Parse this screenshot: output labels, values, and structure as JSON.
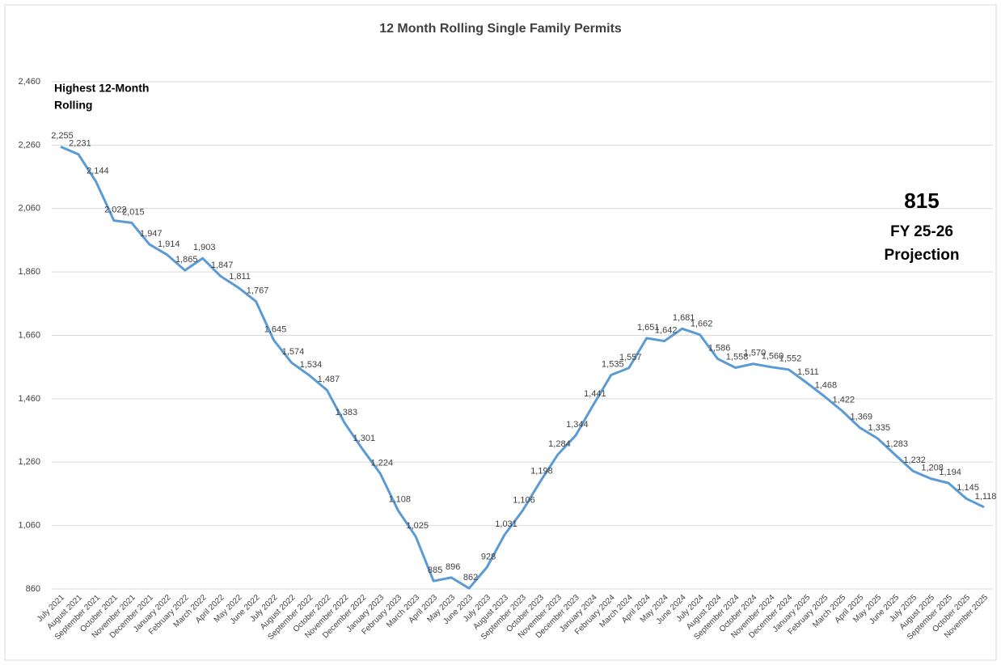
{
  "chart_data": {
    "type": "line",
    "title": "12 Month Rolling Single Family Permits",
    "annotations": {
      "highest": [
        "Highest 12-Month",
        "Rolling"
      ],
      "projection_value": "815",
      "projection_label": [
        "FY 25-26",
        "Projection"
      ]
    },
    "categories": [
      "July 2021",
      "August 2021",
      "September 2021",
      "October 2021",
      "November 2021",
      "December 2021",
      "January 2022",
      "February 2022",
      "March 2022",
      "April 2022",
      "May 2022",
      "June 2022",
      "July 2022",
      "August 2022",
      "September 2022",
      "October 2022",
      "November 2022",
      "December 2022",
      "January 2023",
      "February 2023",
      "March 2023",
      "April 2023",
      "May 2023",
      "June 2023",
      "July 2023",
      "August 2023",
      "September 2023",
      "October 2023",
      "November 2023",
      "December 2023",
      "January 2024",
      "February 2024",
      "March 2024",
      "April 2024",
      "May 2024",
      "June 2024",
      "July 2024",
      "August 2024",
      "September 2024",
      "October 2024",
      "November 2024",
      "December 2024",
      "January 2025",
      "February 2025",
      "March 2025",
      "April 2025",
      "May 2025",
      "June 2025",
      "July 2025",
      "August 2025",
      "September 2025",
      "October 2025",
      "November 2025"
    ],
    "series": [
      {
        "name": "12 Month Rolling Single Family Permits",
        "color": "#5b9bd5",
        "values": [
          2255,
          2231,
          2144,
          2022,
          2015,
          1947,
          1914,
          1865,
          1903,
          1847,
          1811,
          1767,
          1645,
          1574,
          1534,
          1487,
          1383,
          1301,
          1224,
          1108,
          1025,
          885,
          896,
          862,
          928,
          1031,
          1106,
          1198,
          1284,
          1344,
          1441,
          1535,
          1557,
          1651,
          1642,
          1681,
          1662,
          1586,
          1558,
          1570,
          1560,
          1552,
          1511,
          1468,
          1422,
          1369,
          1335,
          1283,
          1232,
          1208,
          1194,
          1145,
          1118
        ],
        "value_labels": [
          "2,255",
          "2,231",
          "2,144",
          "2,022",
          "2,015",
          "1,947",
          "1,914",
          "1,865",
          "1,903",
          "1,847",
          "1,811",
          "1,767",
          "1,645",
          "1,574",
          "1,534",
          "1,487",
          "1,383",
          "1,301",
          "1,224",
          "1,108",
          "1,025",
          "885",
          "896",
          "862",
          "928",
          "1,031",
          "1,106",
          "1,198",
          "1,284",
          "1,344",
          "1,441",
          "1,535",
          "1,557",
          "1,651",
          "1,642",
          "1,681",
          "1,662",
          "1,586",
          "1,558",
          "1,570",
          "1,560",
          "1,552",
          "1,511",
          "1,468",
          "1,422",
          "1,369",
          "1,335",
          "1,283",
          "1,232",
          "1,208",
          "1,194",
          "1,145",
          "1,118"
        ]
      }
    ],
    "ylim": [
      860,
      2460
    ],
    "yticks": [
      860,
      {
        "value": 1060,
        "label": "1,060"
      },
      {
        "value": 1260,
        "label": "1,260"
      },
      {
        "value": 1460,
        "label": "1,460"
      },
      {
        "value": 1660,
        "label": "1,660"
      },
      {
        "value": 1860,
        "label": "1,860"
      },
      {
        "value": 2060,
        "label": "2,060"
      },
      {
        "value": 2260,
        "label": "2,260"
      },
      {
        "value": 2460,
        "label": "2,460"
      }
    ],
    "grid": true
  }
}
